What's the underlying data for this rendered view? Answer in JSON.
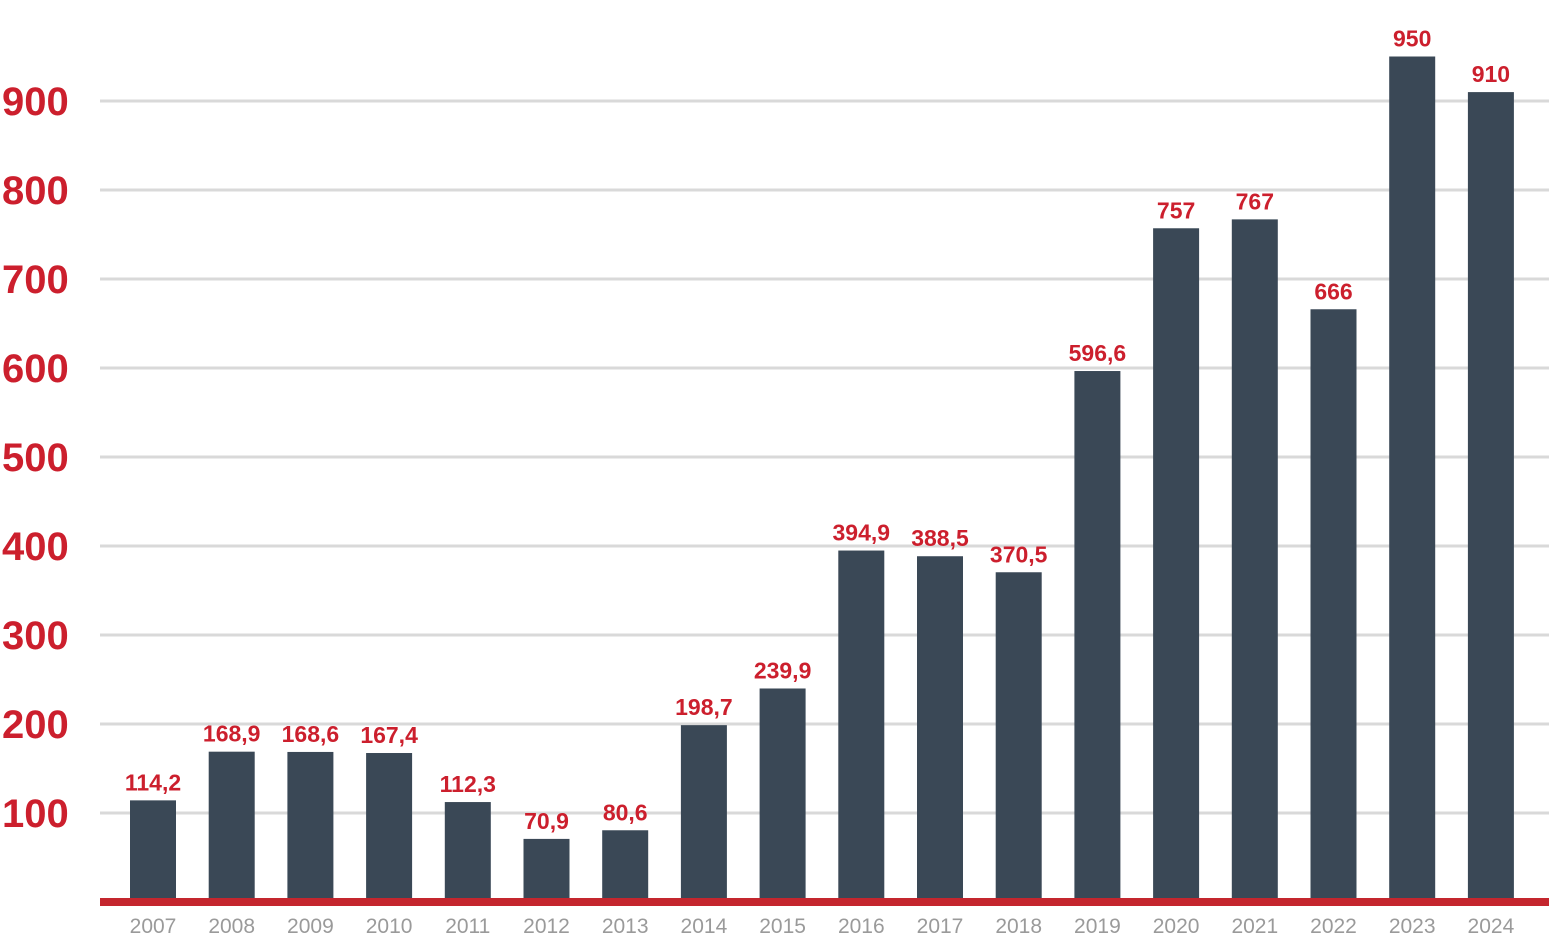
{
  "chart_data": {
    "type": "bar",
    "title": "",
    "xlabel": "",
    "ylabel": "",
    "categories": [
      "2007",
      "2008",
      "2009",
      "2010",
      "2011",
      "2012",
      "2013",
      "2014",
      "2015",
      "2016",
      "2017",
      "2018",
      "2019",
      "2020",
      "2021",
      "2022",
      "2023",
      "2024"
    ],
    "values": [
      114.2,
      168.9,
      168.6,
      167.4,
      112.3,
      70.9,
      80.6,
      198.7,
      239.9,
      394.9,
      388.5,
      370.5,
      596.6,
      757,
      767,
      666,
      950,
      910
    ],
    "value_labels": [
      "114,2",
      "168,9",
      "168,6",
      "167,4",
      "112,3",
      "70,9",
      "80,6",
      "198,7",
      "239,9",
      "394,9",
      "388,5",
      "370,5",
      "596,6",
      "757",
      "767",
      "666",
      "950",
      "910"
    ],
    "yticks": [
      "100",
      "200",
      "300",
      "400",
      "500",
      "600",
      "700",
      "800",
      "900"
    ],
    "ylim": [
      0,
      1000
    ],
    "grid": true,
    "legend": "none",
    "colors": {
      "bar": "#3a4856",
      "axis_line": "#c4262e",
      "grid": "#d9d9d9",
      "tick_label": "#cc1f2d",
      "data_label": "#cc1f2d",
      "category_label": "#9a9a9a"
    }
  }
}
